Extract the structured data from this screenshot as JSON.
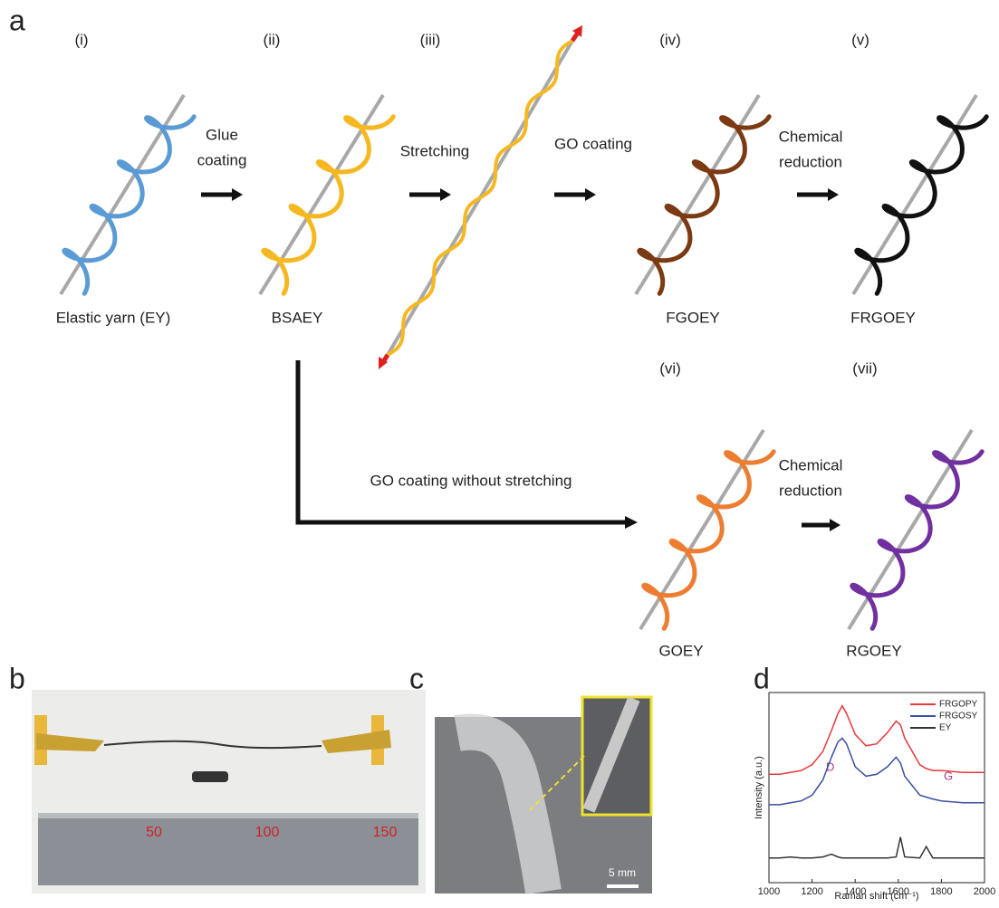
{
  "panel_labels": [
    "a",
    "b",
    "c",
    "d"
  ],
  "panel_a": {
    "steps": [
      "(i)",
      "(ii)",
      "(iii)",
      "(iv)",
      "(v)",
      "(vi)",
      "(vii)"
    ],
    "captions": [
      "Elastic yarn (EY)",
      "BSAEY",
      "FGOEY",
      "FRGOEY",
      "GOEY",
      "RGOEY"
    ],
    "arrow_labels": [
      [
        "Glue",
        "coating"
      ],
      [
        "Stretching"
      ],
      [
        "GO coating"
      ],
      [
        "Chemical",
        "reduction"
      ],
      [
        "GO coating without stretching"
      ],
      [
        "Chemical",
        "reduction"
      ]
    ]
  },
  "panel_b": {
    "ruler_labels": [
      "50",
      "100",
      "150"
    ]
  },
  "panel_c": {
    "scale_bar": "5 mm"
  },
  "chart_data": {
    "type": "line",
    "xlabel": "Raman shift (cm⁻¹)",
    "ylabel": "Intensity (a.u.)",
    "annotations": [
      "D",
      "G"
    ],
    "x": [
      1000,
      1050,
      1100,
      1150,
      1200,
      1250,
      1290,
      1320,
      1340,
      1360,
      1400,
      1450,
      1500,
      1550,
      1590,
      1610,
      1630,
      1700,
      1730,
      1760,
      1800,
      1900,
      2000
    ],
    "series": [
      {
        "name": "FRGOPY",
        "color": "#e8393d",
        "values": [
          5.7,
          5.7,
          5.8,
          5.9,
          6.2,
          6.9,
          8.0,
          8.9,
          9.3,
          8.9,
          7.8,
          7.2,
          7.3,
          7.9,
          8.5,
          8.3,
          7.6,
          6.2,
          6.0,
          5.9,
          5.9,
          5.8,
          5.8
        ]
      },
      {
        "name": "FRGOSY",
        "color": "#3b4ea3",
        "values": [
          4.1,
          4.1,
          4.2,
          4.3,
          4.6,
          5.4,
          6.6,
          7.4,
          7.6,
          7.3,
          6.1,
          5.6,
          5.7,
          6.1,
          6.6,
          6.3,
          5.6,
          4.6,
          4.5,
          4.4,
          4.3,
          4.2,
          4.2
        ]
      },
      {
        "name": "EY",
        "color": "#333333",
        "values": [
          1.3,
          1.3,
          1.35,
          1.3,
          1.3,
          1.35,
          1.5,
          1.35,
          1.3,
          1.3,
          1.3,
          1.3,
          1.3,
          1.3,
          1.35,
          2.4,
          1.35,
          1.3,
          1.9,
          1.3,
          1.3,
          1.3,
          1.3
        ]
      }
    ],
    "xlim": [
      1000,
      2000
    ],
    "xticks": [
      1000,
      1200,
      1400,
      1600,
      1800,
      2000
    ],
    "ylim": [
      0,
      10
    ]
  }
}
